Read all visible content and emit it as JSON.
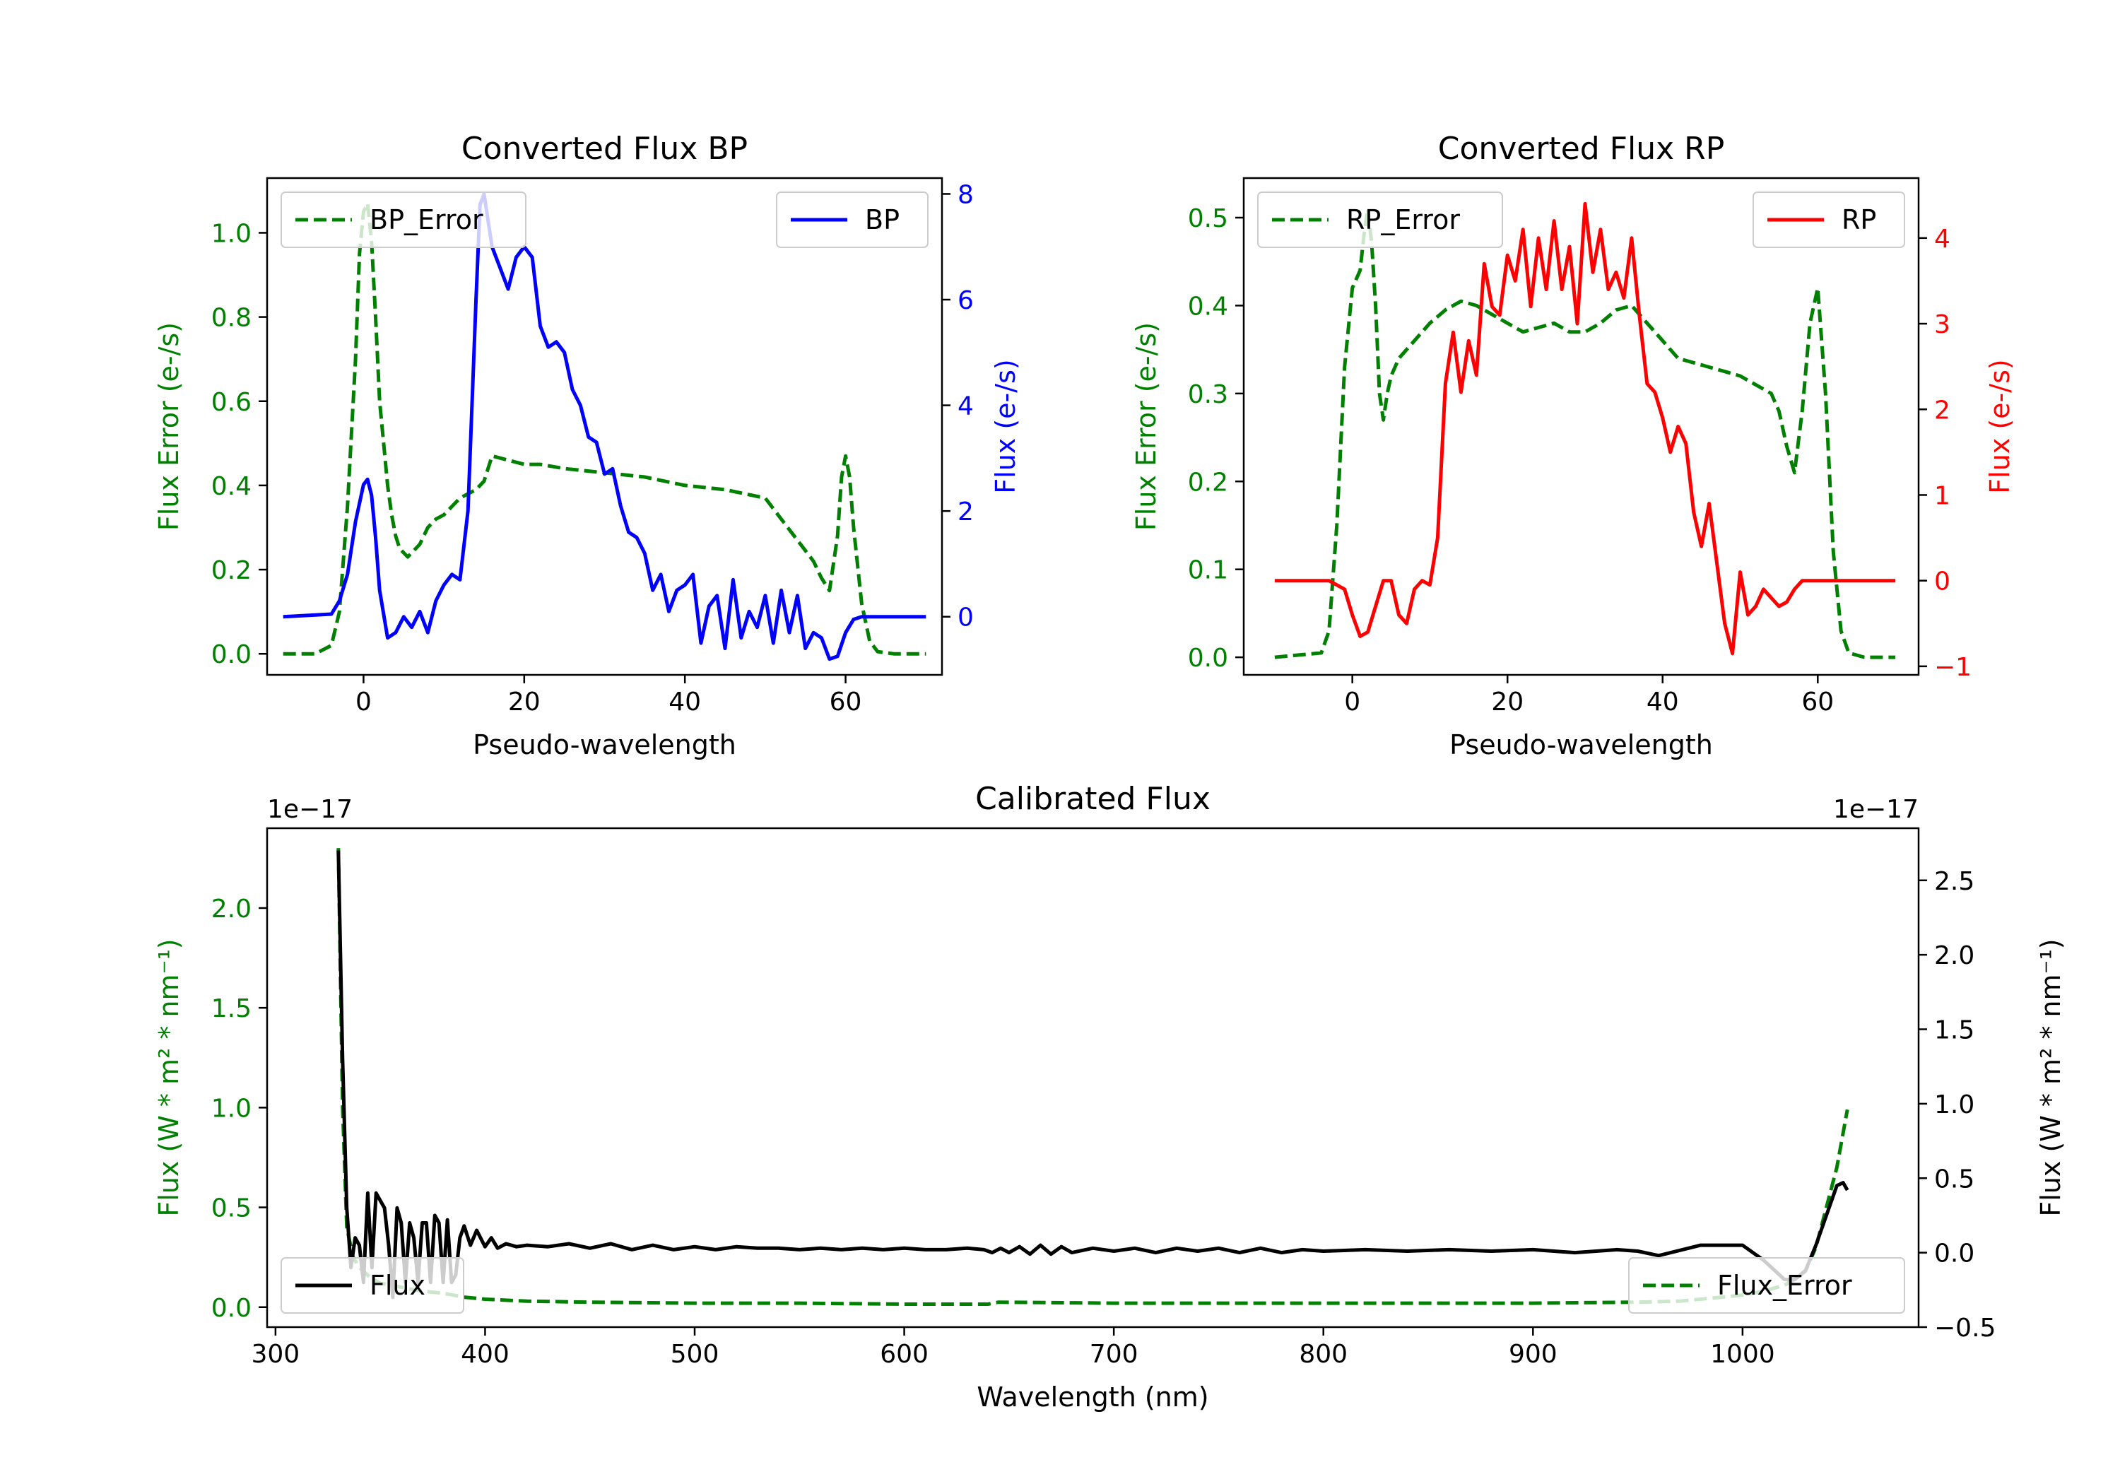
{
  "chart_data": [
    {
      "type": "line",
      "title": "Converted Flux BP",
      "xlabel": "Pseudo-wavelength",
      "ylabel_left": "Flux Error (e-/s)",
      "ylabel_right": "Flux (e-/s)",
      "xlim": [
        -12,
        72
      ],
      "ylim_left": [
        -0.05,
        1.13
      ],
      "ylim_right": [
        -1.1,
        8.3
      ],
      "xticks": [
        "0",
        "20",
        "40",
        "60"
      ],
      "yticks_left": [
        "0.0",
        "0.2",
        "0.4",
        "0.6",
        "0.8",
        "1.0"
      ],
      "yticks_right": [
        "0",
        "2",
        "4",
        "6",
        "8"
      ],
      "left_color": "#008000",
      "right_color": "#0000ff",
      "series": [
        {
          "name": "BP_Error",
          "axis": "left",
          "style": "dashed",
          "color": "#008000",
          "legend_pos": "upper-left",
          "x": [
            -10,
            -6,
            -4,
            -3,
            -2,
            -1,
            -0.5,
            0,
            0.5,
            1,
            1.5,
            2,
            2.5,
            3,
            3.5,
            4,
            4.5,
            5,
            5.5,
            6,
            7,
            8,
            9,
            10,
            11,
            12,
            13,
            14,
            15,
            16,
            18,
            20,
            22,
            25,
            30,
            35,
            40,
            45,
            50,
            52,
            54,
            56,
            57,
            58,
            59,
            59.5,
            60,
            60.5,
            61,
            62,
            63,
            64,
            66,
            70
          ],
          "y": [
            0,
            0,
            0.02,
            0.1,
            0.35,
            0.7,
            0.95,
            1.05,
            1.07,
            0.98,
            0.8,
            0.6,
            0.5,
            0.4,
            0.33,
            0.28,
            0.25,
            0.24,
            0.23,
            0.24,
            0.26,
            0.3,
            0.32,
            0.33,
            0.35,
            0.37,
            0.38,
            0.39,
            0.41,
            0.47,
            0.46,
            0.45,
            0.45,
            0.44,
            0.43,
            0.42,
            0.4,
            0.39,
            0.37,
            0.32,
            0.27,
            0.22,
            0.18,
            0.15,
            0.28,
            0.42,
            0.47,
            0.42,
            0.3,
            0.12,
            0.03,
            0.005,
            0,
            0
          ]
        },
        {
          "name": "BP",
          "axis": "right",
          "style": "solid",
          "color": "#0000ff",
          "legend_pos": "upper-right",
          "x": [
            -10,
            -4,
            -3,
            -2,
            -1,
            0,
            0.5,
            1,
            1.5,
            2,
            3,
            4,
            5,
            6,
            7,
            8,
            9,
            10,
            11,
            12,
            13,
            14,
            14.5,
            15,
            15.5,
            16,
            17,
            18,
            19,
            20,
            21,
            22,
            23,
            24,
            25,
            26,
            27,
            28,
            29,
            30,
            31,
            32,
            33,
            34,
            35,
            36,
            37,
            38,
            39,
            40,
            41,
            42,
            43,
            44,
            45,
            46,
            47,
            48,
            49,
            50,
            51,
            52,
            53,
            54,
            55,
            56,
            57,
            58,
            59,
            60,
            61,
            62,
            63,
            64,
            65,
            66,
            70
          ],
          "y": [
            0,
            0.05,
            0.3,
            0.8,
            1.8,
            2.5,
            2.6,
            2.3,
            1.5,
            0.5,
            -0.4,
            -0.3,
            0,
            -0.2,
            0.1,
            -0.3,
            0.3,
            0.6,
            0.8,
            0.7,
            2,
            6,
            7.8,
            8,
            7.5,
            7,
            6.6,
            6.2,
            6.8,
            7,
            6.8,
            5.5,
            5.1,
            5.2,
            5,
            4.3,
            4,
            3.4,
            3.3,
            2.7,
            2.8,
            2.1,
            1.6,
            1.5,
            1.2,
            0.5,
            0.8,
            0.1,
            0.5,
            0.6,
            0.8,
            -0.5,
            0.2,
            0.4,
            -0.6,
            0.7,
            -0.4,
            0.1,
            -0.2,
            0.4,
            -0.5,
            0.5,
            -0.3,
            0.4,
            -0.6,
            -0.3,
            -0.4,
            -0.8,
            -0.75,
            -0.3,
            -0.05,
            0,
            0,
            0,
            0,
            0,
            0
          ]
        }
      ]
    },
    {
      "type": "line",
      "title": "Converted Flux RP",
      "xlabel": "Pseudo-wavelength",
      "ylabel_left": "Flux Error (e-/s)",
      "ylabel_right": "Flux (e-/s)",
      "xlim": [
        -14,
        73
      ],
      "ylim_left": [
        -0.02,
        0.545
      ],
      "ylim_right": [
        -1.1,
        4.7
      ],
      "xticks": [
        "0",
        "20",
        "40",
        "60"
      ],
      "yticks_left": [
        "0.0",
        "0.1",
        "0.2",
        "0.3",
        "0.4",
        "0.5"
      ],
      "yticks_right": [
        "−1",
        "0",
        "1",
        "2",
        "3",
        "4"
      ],
      "left_color": "#008000",
      "right_color": "#ff0000",
      "series": [
        {
          "name": "RP_Error",
          "axis": "left",
          "style": "dashed",
          "color": "#008000",
          "legend_pos": "upper-left",
          "x": [
            -10,
            -4,
            -3,
            -2,
            -1,
            0,
            1,
            1.5,
            2,
            2.5,
            3,
            3.5,
            4,
            4.5,
            5,
            6,
            8,
            10,
            12,
            14,
            16,
            18,
            20,
            22,
            24,
            26,
            28,
            30,
            32,
            34,
            36,
            38,
            40,
            42,
            44,
            46,
            48,
            50,
            52,
            54,
            55,
            56,
            57,
            58,
            59,
            60,
            61,
            62,
            63,
            64,
            66,
            70
          ],
          "y": [
            0,
            0.005,
            0.03,
            0.15,
            0.33,
            0.42,
            0.44,
            0.48,
            0.51,
            0.47,
            0.4,
            0.3,
            0.27,
            0.3,
            0.32,
            0.34,
            0.36,
            0.38,
            0.395,
            0.405,
            0.4,
            0.39,
            0.38,
            0.37,
            0.375,
            0.38,
            0.37,
            0.37,
            0.38,
            0.395,
            0.4,
            0.38,
            0.36,
            0.34,
            0.335,
            0.33,
            0.325,
            0.32,
            0.31,
            0.3,
            0.28,
            0.24,
            0.21,
            0.28,
            0.38,
            0.42,
            0.3,
            0.12,
            0.03,
            0.005,
            0,
            0
          ]
        },
        {
          "name": "RP",
          "axis": "right",
          "style": "solid",
          "color": "#ff0000",
          "legend_pos": "upper-right",
          "x": [
            -10,
            -3,
            -1,
            0,
            1,
            2,
            3,
            4,
            5,
            6,
            7,
            8,
            9,
            10,
            11,
            12,
            13,
            14,
            15,
            16,
            17,
            18,
            19,
            20,
            21,
            22,
            23,
            24,
            25,
            26,
            27,
            28,
            29,
            30,
            31,
            32,
            33,
            34,
            35,
            36,
            37,
            38,
            39,
            40,
            41,
            42,
            43,
            44,
            45,
            46,
            47,
            48,
            49,
            50,
            51,
            52,
            53,
            54,
            55,
            56,
            57,
            58,
            59,
            60,
            62,
            70
          ],
          "y": [
            0,
            0,
            -0.1,
            -0.4,
            -0.65,
            -0.6,
            -0.3,
            0,
            0,
            -0.4,
            -0.5,
            -0.1,
            0,
            -0.05,
            0.5,
            2.3,
            2.9,
            2.2,
            2.8,
            2.4,
            3.7,
            3.2,
            3.1,
            3.8,
            3.5,
            4.1,
            3.2,
            4,
            3.4,
            4.2,
            3.4,
            3.9,
            3,
            4.4,
            3.6,
            4.1,
            3.4,
            3.6,
            3.3,
            4.0,
            3.1,
            2.3,
            2.2,
            1.9,
            1.5,
            1.8,
            1.6,
            0.8,
            0.4,
            0.9,
            0.2,
            -0.5,
            -0.85,
            0.1,
            -0.4,
            -0.3,
            -0.1,
            -0.2,
            -0.3,
            -0.25,
            -0.1,
            0,
            0,
            0,
            0,
            0
          ]
        }
      ]
    },
    {
      "type": "line",
      "title": "Calibrated Flux",
      "xlabel": "Wavelength (nm)",
      "ylabel_left": "Flux (W * m² * nm⁻¹)",
      "ylabel_right": "Flux (W * m² * nm⁻¹)",
      "offset_left": "1e−17",
      "offset_right": "1e−17",
      "xlim": [
        296,
        1084
      ],
      "ylim_left": [
        -0.1,
        2.4
      ],
      "ylim_right": [
        -0.5,
        2.85
      ],
      "xticks": [
        "300",
        "400",
        "500",
        "600",
        "700",
        "800",
        "900",
        "1000"
      ],
      "yticks_left": [
        "0.0",
        "0.5",
        "1.0",
        "1.5",
        "2.0"
      ],
      "yticks_right": [
        "−0.5",
        "0.0",
        "0.5",
        "1.0",
        "1.5",
        "2.0",
        "2.5"
      ],
      "left_color": "#008000",
      "right_color": "#000000",
      "series": [
        {
          "name": "Flux_Error",
          "axis": "left",
          "style": "dashed",
          "color": "#008000",
          "legend_pos": "lower-right",
          "x": [
            330,
            332,
            334,
            337,
            340,
            345,
            350,
            360,
            370,
            380,
            385,
            390,
            400,
            420,
            450,
            500,
            550,
            600,
            640,
            645,
            700,
            800,
            900,
            950,
            970,
            990,
            1000,
            1010,
            1020,
            1025,
            1030,
            1035,
            1040,
            1045,
            1050
          ],
          "y": [
            2.3,
            1.0,
            0.4,
            0.25,
            0.2,
            0.15,
            0.12,
            0.1,
            0.08,
            0.07,
            0.06,
            0.05,
            0.04,
            0.03,
            0.025,
            0.02,
            0.02,
            0.015,
            0.015,
            0.025,
            0.02,
            0.02,
            0.02,
            0.025,
            0.03,
            0.05,
            0.06,
            0.08,
            0.11,
            0.14,
            0.18,
            0.3,
            0.5,
            0.7,
            0.99
          ]
        },
        {
          "name": "Flux",
          "axis": "right",
          "style": "solid",
          "color": "#000000",
          "legend_pos": "lower-left",
          "x": [
            330,
            332,
            334,
            336,
            338,
            340,
            342,
            344,
            346,
            348,
            350,
            352,
            354,
            356,
            358,
            360,
            362,
            364,
            366,
            368,
            370,
            372,
            374,
            376,
            378,
            380,
            382,
            384,
            386,
            388,
            390,
            393,
            396,
            400,
            403,
            406,
            410,
            415,
            420,
            430,
            440,
            450,
            460,
            470,
            480,
            490,
            500,
            510,
            520,
            530,
            540,
            550,
            560,
            570,
            580,
            590,
            600,
            610,
            620,
            630,
            638,
            642,
            646,
            650,
            655,
            660,
            665,
            670,
            675,
            680,
            690,
            700,
            710,
            720,
            730,
            740,
            750,
            760,
            770,
            780,
            790,
            800,
            820,
            840,
            860,
            880,
            900,
            920,
            940,
            950,
            960,
            980,
            1000,
            1010,
            1020,
            1025,
            1030,
            1035,
            1040,
            1045,
            1048,
            1050
          ],
          "y": [
            2.7,
            1.3,
            0.3,
            -0.1,
            0.1,
            0.05,
            -0.2,
            0.4,
            -0.1,
            0.4,
            0.35,
            0.3,
            0.05,
            -0.3,
            0.3,
            0.2,
            -0.2,
            0.2,
            0.1,
            -0.2,
            0.2,
            0.2,
            -0.2,
            0.25,
            0.2,
            -0.2,
            0.22,
            -0.2,
            -0.15,
            0.1,
            0.18,
            0.05,
            0.15,
            0.04,
            0.1,
            0.03,
            0.06,
            0.04,
            0.05,
            0.04,
            0.06,
            0.03,
            0.06,
            0.02,
            0.05,
            0.02,
            0.04,
            0.02,
            0.04,
            0.03,
            0.03,
            0.02,
            0.03,
            0.02,
            0.03,
            0.02,
            0.03,
            0.02,
            0.02,
            0.03,
            0.02,
            0.0,
            0.03,
            0.0,
            0.04,
            -0.01,
            0.05,
            -0.01,
            0.04,
            0.0,
            0.03,
            0.01,
            0.03,
            0.0,
            0.03,
            0.01,
            0.03,
            0.0,
            0.03,
            0.0,
            0.02,
            0.01,
            0.02,
            0.01,
            0.02,
            0.01,
            0.02,
            0.0,
            0.02,
            0.01,
            -0.02,
            0.05,
            0.05,
            -0.05,
            -0.18,
            -0.18,
            -0.12,
            0.05,
            0.25,
            0.45,
            0.47,
            0.42
          ]
        }
      ]
    }
  ]
}
